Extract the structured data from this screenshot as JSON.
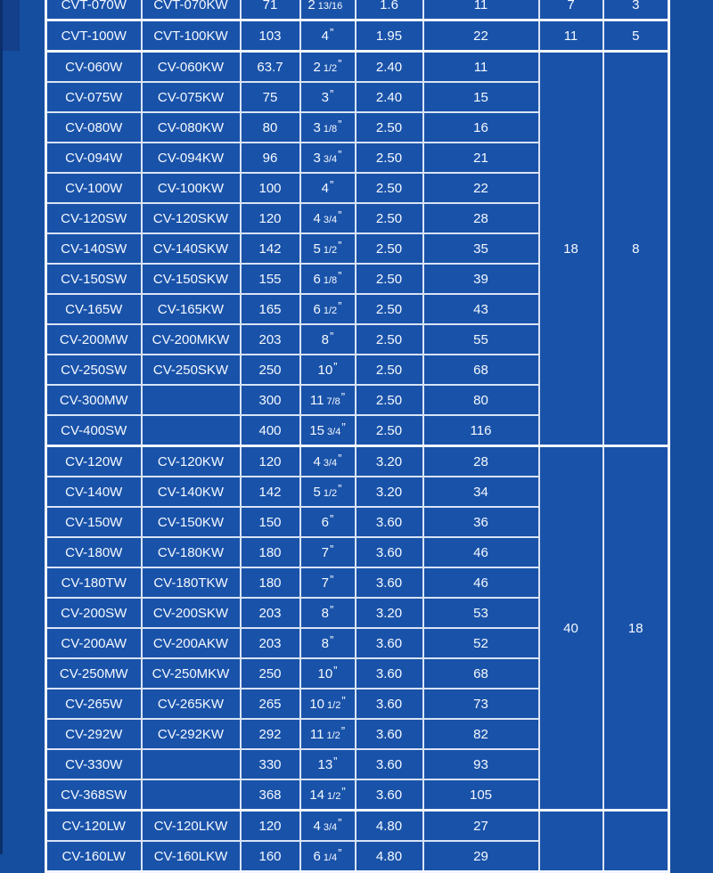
{
  "colors": {
    "margin_bg": "#164e9f",
    "cell_bg": "#1952a9",
    "border_light": "#d9e4f5",
    "border_bright": "#f2f7ff",
    "text": "#f5f9ff",
    "edge_dark": "#0b2f6b",
    "corner_dark": "#143f8a"
  },
  "chart_data": {
    "type": "table",
    "size_quote": "”",
    "rows": [
      {
        "model_w": "CVT-070W",
        "model_kw": "CVT-070KW",
        "capacity": "71",
        "size_main": "2",
        "size_frac": "13/16",
        "weight": "1.6",
        "output": "11",
        "group": {
          "rows": 1,
          "c7": "7",
          "c8": "3"
        }
      },
      {
        "model_w": "CVT-100W",
        "model_kw": "CVT-100KW",
        "capacity": "103",
        "size_main": "4",
        "size_frac": "",
        "weight": "1.95",
        "output": "22",
        "group": {
          "rows": 1,
          "c7": "11",
          "c8": "5"
        }
      },
      {
        "model_w": "CV-060W",
        "model_kw": "CV-060KW",
        "capacity": "63.7",
        "size_main": "2",
        "size_frac": "1/2",
        "weight": "2.40",
        "output": "11",
        "group": {
          "rows": 13,
          "c7": "18",
          "c8": "8"
        }
      },
      {
        "model_w": "CV-075W",
        "model_kw": "CV-075KW",
        "capacity": "75",
        "size_main": "3",
        "size_frac": "",
        "weight": "2.40",
        "output": "15"
      },
      {
        "model_w": "CV-080W",
        "model_kw": "CV-080KW",
        "capacity": "80",
        "size_main": "3",
        "size_frac": "1/8",
        "weight": "2.50",
        "output": "16"
      },
      {
        "model_w": "CV-094W",
        "model_kw": "CV-094KW",
        "capacity": "96",
        "size_main": "3",
        "size_frac": "3/4",
        "weight": "2.50",
        "output": "21"
      },
      {
        "model_w": "CV-100W",
        "model_kw": "CV-100KW",
        "capacity": "100",
        "size_main": "4",
        "size_frac": "",
        "weight": "2.50",
        "output": "22"
      },
      {
        "model_w": "CV-120SW",
        "model_kw": "CV-120SKW",
        "capacity": "120",
        "size_main": "4",
        "size_frac": "3/4",
        "weight": "2.50",
        "output": "28"
      },
      {
        "model_w": "CV-140SW",
        "model_kw": "CV-140SKW",
        "capacity": "142",
        "size_main": "5",
        "size_frac": "1/2",
        "weight": "2.50",
        "output": "35"
      },
      {
        "model_w": "CV-150SW",
        "model_kw": "CV-150SKW",
        "capacity": "155",
        "size_main": "6",
        "size_frac": "1/8",
        "weight": "2.50",
        "output": "39"
      },
      {
        "model_w": "CV-165W",
        "model_kw": "CV-165KW",
        "capacity": "165",
        "size_main": "6",
        "size_frac": "1/2",
        "weight": "2.50",
        "output": "43"
      },
      {
        "model_w": "CV-200MW",
        "model_kw": "CV-200MKW",
        "capacity": "203",
        "size_main": "8",
        "size_frac": "",
        "weight": "2.50",
        "output": "55"
      },
      {
        "model_w": "CV-250SW",
        "model_kw": "CV-250SKW",
        "capacity": "250",
        "size_main": "10",
        "size_frac": "",
        "weight": "2.50",
        "output": "68"
      },
      {
        "model_w": "CV-300MW",
        "model_kw": "",
        "capacity": "300",
        "size_main": "11",
        "size_frac": "7/8",
        "weight": "2.50",
        "output": "80"
      },
      {
        "model_w": "CV-400SW",
        "model_kw": "",
        "capacity": "400",
        "size_main": "15",
        "size_frac": "3/4",
        "weight": "2.50",
        "output": "116"
      },
      {
        "model_w": "CV-120W",
        "model_kw": "CV-120KW",
        "capacity": "120",
        "size_main": "4",
        "size_frac": "3/4",
        "weight": "3.20",
        "output": "28",
        "group": {
          "rows": 12,
          "c7": "40",
          "c8": "18"
        }
      },
      {
        "model_w": "CV-140W",
        "model_kw": "CV-140KW",
        "capacity": "142",
        "size_main": "5",
        "size_frac": "1/2",
        "weight": "3.20",
        "output": "34"
      },
      {
        "model_w": "CV-150W",
        "model_kw": "CV-150KW",
        "capacity": "150",
        "size_main": "6",
        "size_frac": "",
        "weight": "3.60",
        "output": "36"
      },
      {
        "model_w": "CV-180W",
        "model_kw": "CV-180KW",
        "capacity": "180",
        "size_main": "7",
        "size_frac": "",
        "weight": "3.60",
        "output": "46"
      },
      {
        "model_w": "CV-180TW",
        "model_kw": "CV-180TKW",
        "capacity": "180",
        "size_main": "7",
        "size_frac": "",
        "weight": "3.60",
        "output": "46"
      },
      {
        "model_w": "CV-200SW",
        "model_kw": "CV-200SKW",
        "capacity": "203",
        "size_main": "8",
        "size_frac": "",
        "weight": "3.20",
        "output": "53"
      },
      {
        "model_w": "CV-200AW",
        "model_kw": "CV-200AKW",
        "capacity": "203",
        "size_main": "8",
        "size_frac": "",
        "weight": "3.60",
        "output": "52"
      },
      {
        "model_w": "CV-250MW",
        "model_kw": "CV-250MKW",
        "capacity": "250",
        "size_main": "10",
        "size_frac": "",
        "weight": "3.60",
        "output": "68"
      },
      {
        "model_w": "CV-265W",
        "model_kw": "CV-265KW",
        "capacity": "265",
        "size_main": "10",
        "size_frac": "1/2",
        "weight": "3.60",
        "output": "73"
      },
      {
        "model_w": "CV-292W",
        "model_kw": "CV-292KW",
        "capacity": "292",
        "size_main": "11",
        "size_frac": "1/2",
        "weight": "3.60",
        "output": "82"
      },
      {
        "model_w": "CV-330W",
        "model_kw": "",
        "capacity": "330",
        "size_main": "13",
        "size_frac": "",
        "weight": "3.60",
        "output": "93"
      },
      {
        "model_w": "CV-368SW",
        "model_kw": "",
        "capacity": "368",
        "size_main": "14",
        "size_frac": "1/2",
        "weight": "3.60",
        "output": "105"
      },
      {
        "model_w": "CV-120LW",
        "model_kw": "CV-120LKW",
        "capacity": "120",
        "size_main": "4",
        "size_frac": "3/4",
        "weight": "4.80",
        "output": "27",
        "group": {
          "rows": 2,
          "c7": "",
          "c8": ""
        }
      },
      {
        "model_w": "CV-160LW",
        "model_kw": "CV-160LKW",
        "capacity": "160",
        "size_main": "6",
        "size_frac": "1/4",
        "weight": "4.80",
        "output": "29"
      }
    ]
  }
}
